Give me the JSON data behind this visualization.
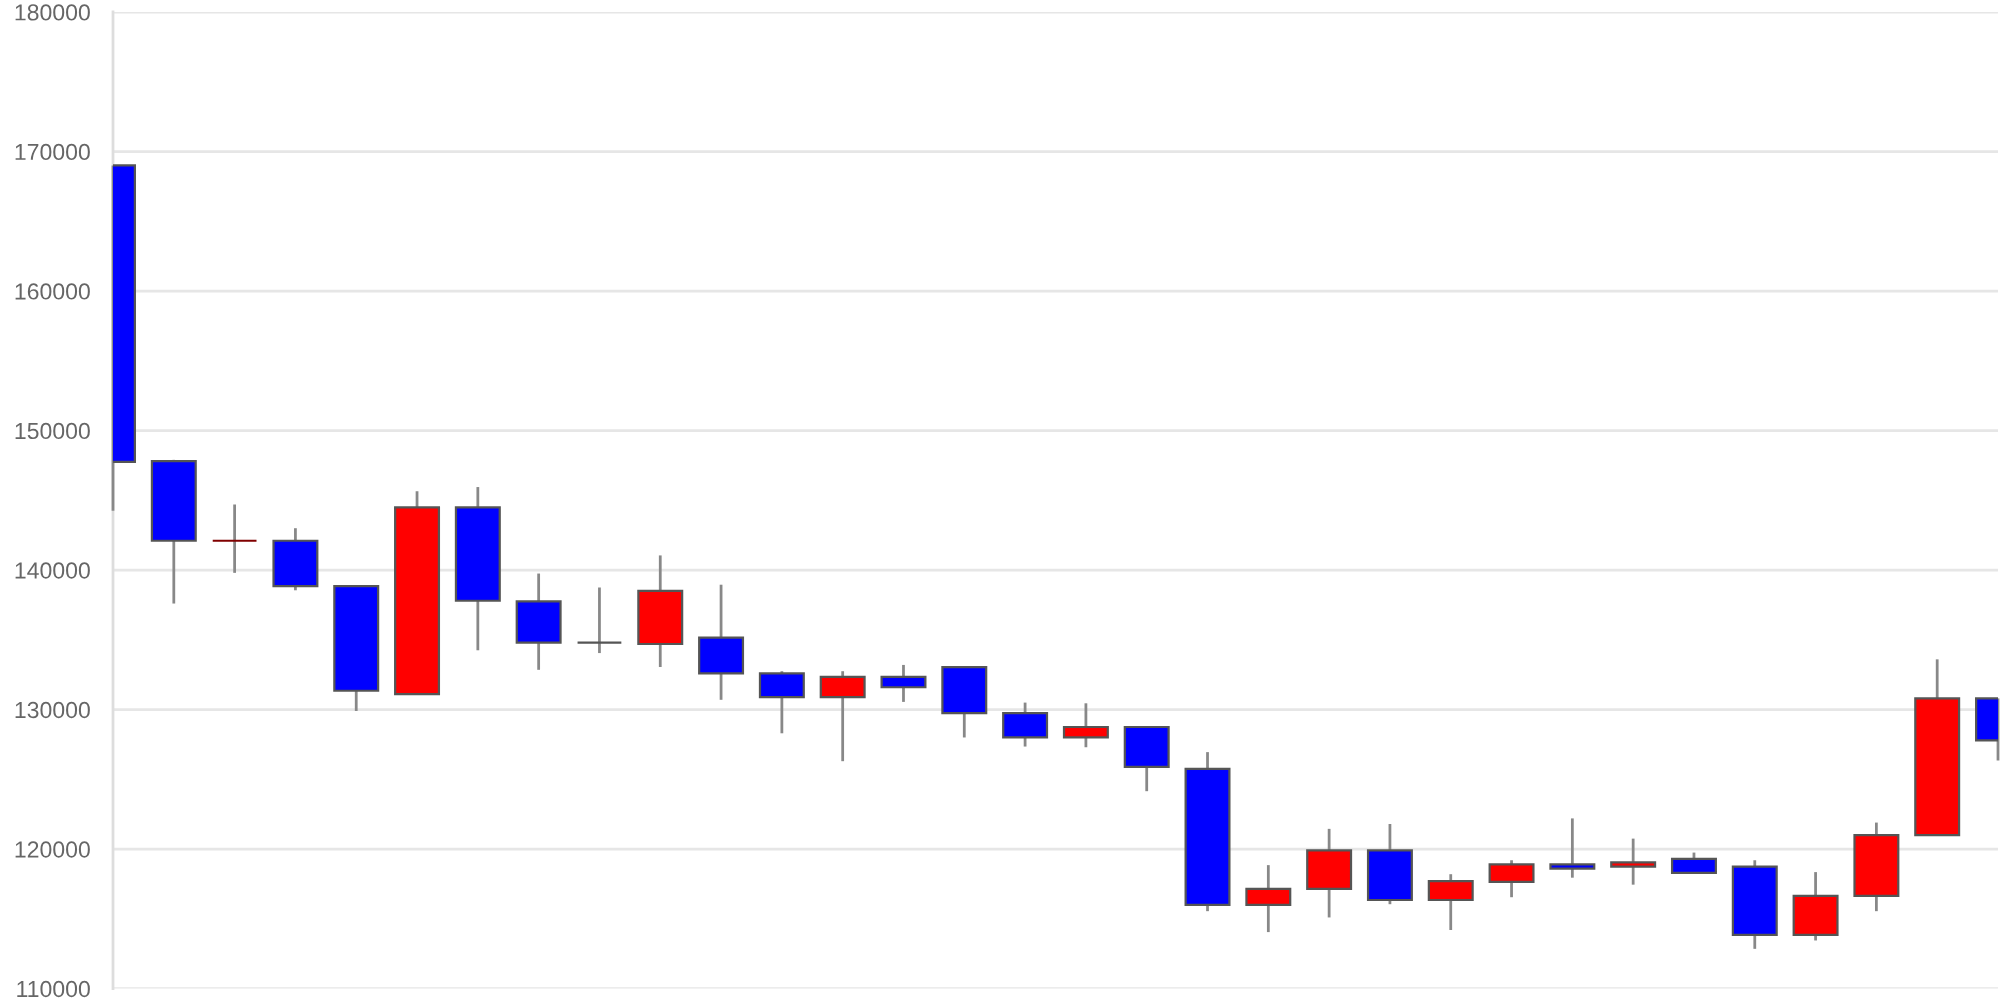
{
  "chart_data": {
    "type": "candlestick",
    "categories": [
      null,
      null,
      null,
      null,
      null,
      null,
      null,
      null,
      null,
      null,
      null,
      null,
      null,
      null,
      null,
      null,
      null,
      null,
      null,
      null,
      null,
      null,
      null,
      null,
      null,
      null,
      null,
      null,
      null,
      null,
      null,
      null
    ],
    "ohlc": [
      [
        169000,
        169000,
        144250,
        147750
      ],
      [
        147800,
        147900,
        137600,
        142100
      ],
      [
        142100,
        144700,
        139800,
        142100
      ],
      [
        142100,
        143000,
        138550,
        138850
      ],
      [
        138850,
        138850,
        129900,
        131350
      ],
      [
        131100,
        145650,
        131100,
        144500
      ],
      [
        144500,
        145950,
        134250,
        137800
      ],
      [
        137750,
        139750,
        132850,
        134800
      ],
      [
        134800,
        138750,
        134050,
        134800
      ],
      [
        134700,
        141050,
        133050,
        138500
      ],
      [
        135150,
        138950,
        130700,
        132600
      ],
      [
        132600,
        132750,
        128300,
        130900
      ],
      [
        130900,
        132750,
        126300,
        132350
      ],
      [
        132350,
        133200,
        130550,
        131600
      ],
      [
        133050,
        133050,
        128000,
        129750
      ],
      [
        129750,
        130500,
        127350,
        128000
      ],
      [
        128000,
        130450,
        127300,
        128750
      ],
      [
        128750,
        128750,
        124150,
        125900
      ],
      [
        125750,
        126950,
        115550,
        116000
      ],
      [
        116000,
        118850,
        114050,
        117150
      ],
      [
        117150,
        121450,
        115100,
        119900
      ],
      [
        119900,
        121800,
        116050,
        116350
      ],
      [
        116350,
        118200,
        114200,
        117700
      ],
      [
        117650,
        119200,
        116550,
        118900
      ],
      [
        118900,
        122200,
        117950,
        118600
      ],
      [
        118750,
        120750,
        117450,
        119050
      ],
      [
        119300,
        119750,
        118300,
        118300
      ],
      [
        118750,
        119200,
        112850,
        113850
      ],
      [
        113850,
        118350,
        113450,
        116650
      ],
      [
        116650,
        121900,
        115550,
        121000
      ],
      [
        121000,
        133600,
        121000,
        130800
      ],
      [
        130800,
        130800,
        126350,
        127800
      ]
    ],
    "colors": [
      "#0000ff",
      "#0000ff",
      "#800000",
      "#0000ff",
      "#0000ff",
      "#ff0000",
      "#0000ff",
      "#0000ff",
      "#555555",
      "#ff0000",
      "#0000ff",
      "#0000ff",
      "#ff0000",
      "#0000ff",
      "#0000ff",
      "#0000ff",
      "#ff0000",
      "#0000ff",
      "#0000ff",
      "#ff0000",
      "#ff0000",
      "#0000ff",
      "#ff0000",
      "#ff0000",
      "#0000ff",
      "#ff0000",
      "#0000ff",
      "#0000ff",
      "#ff0000",
      "#ff0000",
      "#ff0000",
      "#0000ff"
    ],
    "ylim": [
      110000,
      180000
    ],
    "yticks": [
      110000,
      120000,
      130000,
      140000,
      150000,
      160000,
      170000,
      180000
    ],
    "grid": "y",
    "tick_labels": "y"
  }
}
